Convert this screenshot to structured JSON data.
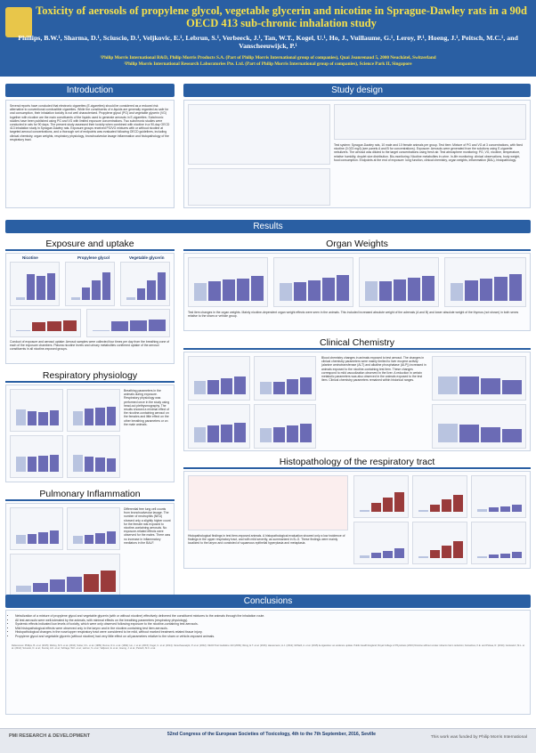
{
  "title": "Toxicity of aerosols of propylene glycol, vegetable glycerin and nicotine in Sprague-Dawley rats in a 90d OECD 413 sub-chronic inhalation study",
  "authors": "Phillips, B.W.¹, Sharma, D.¹, Sciuscio, D.¹, Veljkovic, E.¹, Lebrun, S.¹, Verbeeck, J.¹, Tan, W.T., Kogel, U.¹, Ho, J., Vuillaume, G.¹, Leroy, P.¹, Hoeng, J.¹, Peitsch, M.C.¹, and Vanscheeuwijck, P.¹",
  "affiliations": [
    "¹Philip Morris International R&D, Philip Morris Products S.A. (Part of Philip Morris International group of companies), Quai Jeanrenaud 5, 2000 Neuchâtel, Switzerland",
    "²Philip Morris International Research Laboratories Pte. Ltd. (Part of Philip Morris International group of companies), Science Park II, Singapore"
  ],
  "sections": {
    "introduction": "Introduction",
    "study_design": "Study design",
    "results": "Results",
    "exposure": "Exposure and uptake",
    "organ_weights": "Organ Weights",
    "clinical_chemistry": "Clinical Chemistry",
    "respiratory": "Respiratory physiology",
    "histopathology": "Histopathology of the respiratory tract",
    "pulmonary": "Pulmonary Inflammation",
    "conclusions": "Conclusions"
  },
  "exposure_labels": [
    "Nicotine",
    "Propylene glycol",
    "Vegetable glycerin"
  ],
  "footer": {
    "org": "PMI RESEARCH & DEVELOPMENT",
    "congress": "52nd Congress of the European Societies of Toxicology, 4th to the 7th September, 2016, Seville",
    "funded": "This work was funded by Philip Morris International"
  },
  "conclusions_list": [
    "Nebulization of a mixture of propylene glycol and vegetable glycerin (with or without nicotine) effectively delivered the constituent mixtures to the animals through the inhalation route.",
    "All test aerosols were well-tolerated by the animals, with minimal effects on the breathing parameters (respiratory physiology).",
    "Systemic effects indicated low levels of toxicity, which were only observed following exposure to the nicotine-containing test aerosols.",
    "Mild histopathological effects were observed only in the larynx and in the nicotine-containing test item aerosols.",
    "Histopathological changes in the nose/upper respiratory tract were considered to be mild, without marked treatment-related tissue injury.",
    "Propylene glycol and vegetable glycerin (without nicotine) had very little effect on all parameters relative to the sham or vehicle-exposed animals."
  ]
}
